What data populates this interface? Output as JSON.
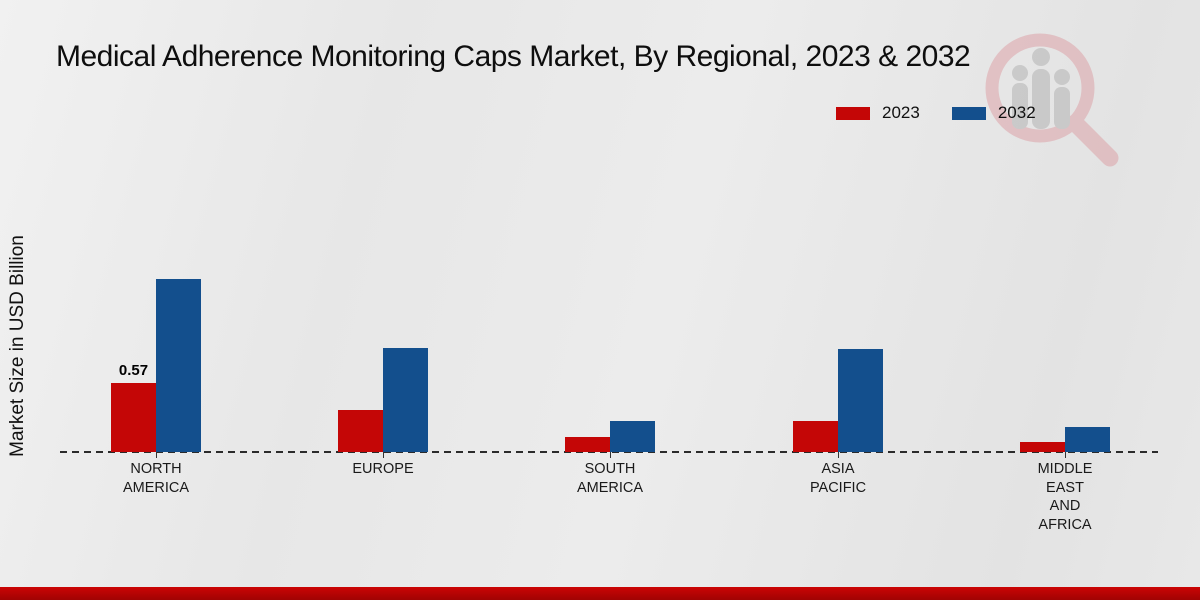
{
  "title": "Medical Adherence Monitoring Caps Market, By Regional, 2023 & 2032",
  "y_axis_label": "Market Size in USD Billion",
  "legend": {
    "items": [
      {
        "label": "2023",
        "color": "#c40606"
      },
      {
        "label": "2032",
        "color": "#134f8d"
      }
    ]
  },
  "colors": {
    "bar_2023": "#c40606",
    "bar_2032": "#134f8d",
    "bottom_strip": "#c00404",
    "background": "#e9e9e9",
    "axis_line": "#2b2b2b"
  },
  "watermark": "magnifier-bar-chart-logo",
  "chart_data": {
    "type": "bar",
    "title": "Medical Adherence Monitoring Caps Market, By Regional, 2023 & 2032",
    "xlabel": "",
    "ylabel": "Market Size in USD Billion",
    "categories": [
      "North America",
      "Europe",
      "South America",
      "Asia Pacific",
      "Middle East and Africa"
    ],
    "category_display_lines": [
      "NORTH\nAMERICA",
      "EUROPE",
      "SOUTH\nAMERICA",
      "ASIA\nPACIFIC",
      "MIDDLE\nEAST\nAND\nAFRICA"
    ],
    "series": [
      {
        "name": "2023",
        "color": "#c40606",
        "values": [
          0.57,
          0.35,
          0.12,
          0.26,
          0.08
        ]
      },
      {
        "name": "2032",
        "color": "#134f8d",
        "values": [
          1.43,
          0.86,
          0.26,
          0.85,
          0.21
        ]
      }
    ],
    "data_labels": [
      {
        "series_index": 0,
        "category_index": 0,
        "text": "0.57"
      }
    ],
    "ylim": [
      0,
      1.6
    ],
    "grid": false,
    "legend_position": "top-right",
    "baseline": "dashed"
  }
}
